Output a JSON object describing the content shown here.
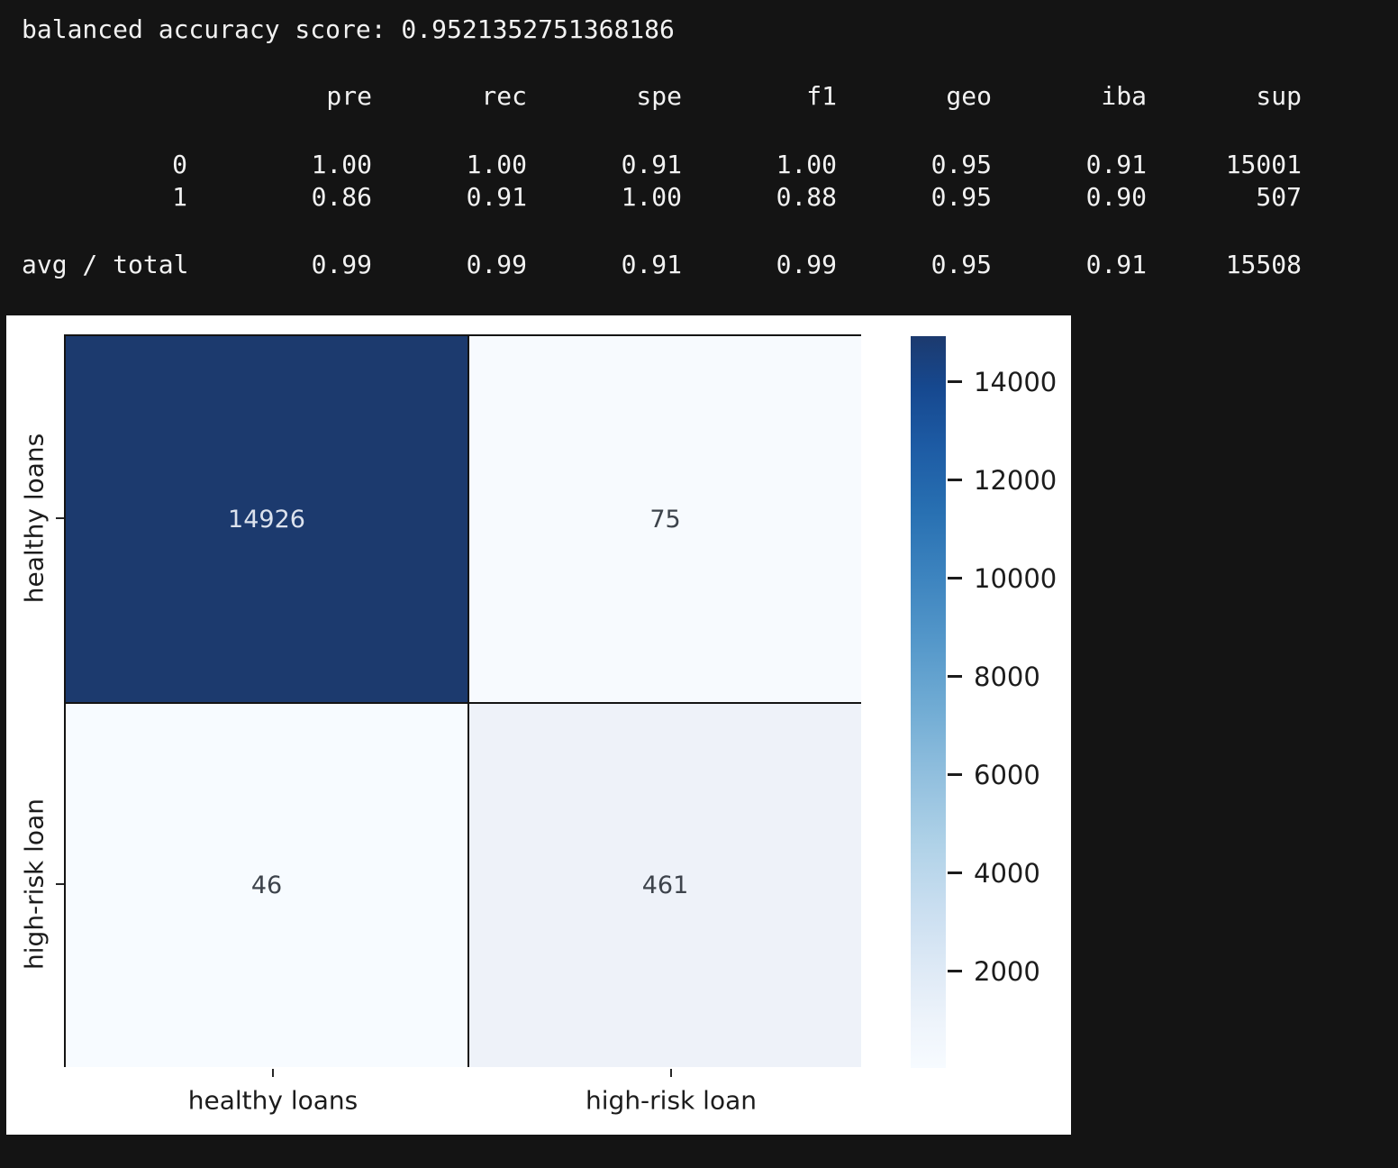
{
  "score_line": "balanced accuracy score: 0.9521352751368186",
  "report": {
    "headers": [
      "pre",
      "rec",
      "spe",
      "f1",
      "geo",
      "iba",
      "sup"
    ],
    "rows": [
      {
        "label": "0",
        "values": [
          "1.00",
          "1.00",
          "0.91",
          "1.00",
          "0.95",
          "0.91",
          "15001"
        ]
      },
      {
        "label": "1",
        "values": [
          "0.86",
          "0.91",
          "1.00",
          "0.88",
          "0.95",
          "0.90",
          "507"
        ]
      },
      {
        "label": "avg / total",
        "values": [
          "0.99",
          "0.99",
          "0.91",
          "0.99",
          "0.95",
          "0.91",
          "15508"
        ]
      }
    ]
  },
  "figure": {
    "x_axis_labels": [
      "healthy loans",
      "high-risk loan"
    ],
    "y_axis_labels": [
      "healthy loans",
      "high-risk loan"
    ],
    "cells": [
      {
        "value": "14926",
        "bg": "#1c3a6e",
        "fg": "#dce2ed"
      },
      {
        "value": "75",
        "bg": "#f7fafe",
        "fg": "#3d434b"
      },
      {
        "value": "46",
        "bg": "#f7fbff",
        "fg": "#3d434b"
      },
      {
        "value": "461",
        "bg": "#eef2f9",
        "fg": "#3d434b"
      }
    ],
    "colorbar": {
      "tick_labels": [
        "14000",
        "12000",
        "10000",
        "8000",
        "6000",
        "4000",
        "2000"
      ],
      "gradient": [
        "#1c3a6e 0%",
        "#16488f 7%",
        "#1d5ba4 15%",
        "#2870b2 24%",
        "#3d84bf 33%",
        "#5598ca 42%",
        "#71acd4 51%",
        "#91bfde 60%",
        "#aed1e7 69%",
        "#c9def0 78%",
        "#dfeaf6 87%",
        "#eef4fb 94%",
        "#f7fbff 100%"
      ]
    }
  },
  "colors": {
    "page_bg": "#141414",
    "figure_bg": "#ffffff",
    "report_text": "#f2f2f2",
    "cmap_max": "#1c3a6e",
    "cmap_min": "#f7fbff",
    "grid_line": "#141414"
  },
  "chart_data": {
    "type": "heatmap",
    "title": "",
    "x_categories": [
      "healthy loans",
      "high-risk loan"
    ],
    "y_categories": [
      "healthy loans",
      "high-risk loan"
    ],
    "matrix": [
      [
        14926,
        75
      ],
      [
        46,
        461
      ]
    ],
    "annotations": [
      [
        "14926",
        "75"
      ],
      [
        "46",
        "461"
      ]
    ],
    "colormap": "Blues",
    "vmin": 46,
    "vmax": 14926,
    "colorbar_ticks": [
      2000,
      4000,
      6000,
      8000,
      10000,
      12000,
      14000
    ],
    "legend_position": "right",
    "grid": false
  }
}
